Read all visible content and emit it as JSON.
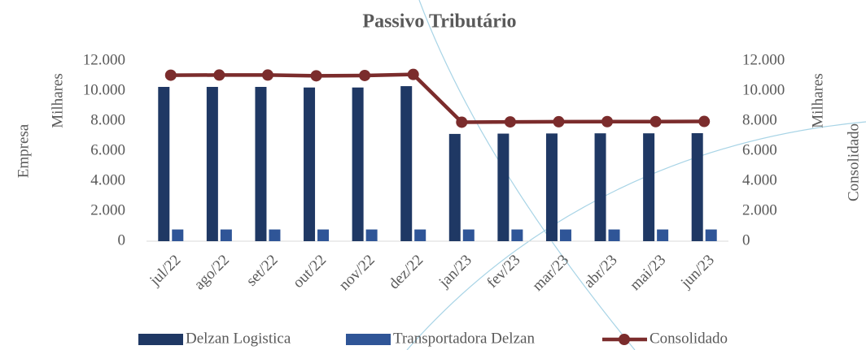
{
  "chart_data": {
    "type": "bar",
    "title": "Passivo Tributário",
    "y_axis_title": "Empresa",
    "y_axis_unit": "Milhares",
    "y2_axis_title": "Consolidado",
    "y2_axis_unit": "Milhares",
    "categories": [
      "jul/22",
      "ago/22",
      "set/22",
      "out/22",
      "nov/22",
      "dez/22",
      "jan/23",
      "fev/23",
      "mar/23",
      "abr/23",
      "mai/23",
      "jun/23"
    ],
    "series": [
      {
        "name": "Delzan Logistica",
        "type": "bar",
        "color": "#1f3864",
        "values": [
          10270,
          10270,
          10270,
          10230,
          10230,
          10320,
          7140,
          7160,
          7170,
          7180,
          7180,
          7190
        ]
      },
      {
        "name": "Transportadora Delzan",
        "type": "bar",
        "color": "#2f5597",
        "values": [
          780,
          780,
          780,
          780,
          780,
          780,
          780,
          780,
          780,
          780,
          780,
          780
        ]
      },
      {
        "name": "Consolidado",
        "type": "line",
        "axis": "y2",
        "color": "#7b2c2c",
        "values": [
          11050,
          11060,
          11060,
          11010,
          11030,
          11100,
          7920,
          7940,
          7950,
          7960,
          7960,
          7970
        ]
      }
    ],
    "ylim": [
      0,
      12000
    ],
    "yticks": [
      0,
      {
        "value": 2000,
        "label": "2.000"
      },
      {
        "value": 4000,
        "label": "4.000"
      },
      {
        "value": 6000,
        "label": "6.000"
      },
      {
        "value": 8000,
        "label": "8.000"
      },
      {
        "value": 10000,
        "label": "10.000"
      },
      {
        "value": 12000,
        "label": "12.000"
      }
    ],
    "y2lim": [
      0,
      12000
    ],
    "y2ticks": [
      0,
      {
        "value": 2000,
        "label": "2.000"
      },
      {
        "value": 4000,
        "label": "4.000"
      },
      {
        "value": 6000,
        "label": "6.000"
      },
      {
        "value": 8000,
        "label": "8.000"
      },
      {
        "value": 10000,
        "label": "10.000"
      },
      {
        "value": 12000,
        "label": "12.000"
      }
    ],
    "legend": "bottom"
  }
}
